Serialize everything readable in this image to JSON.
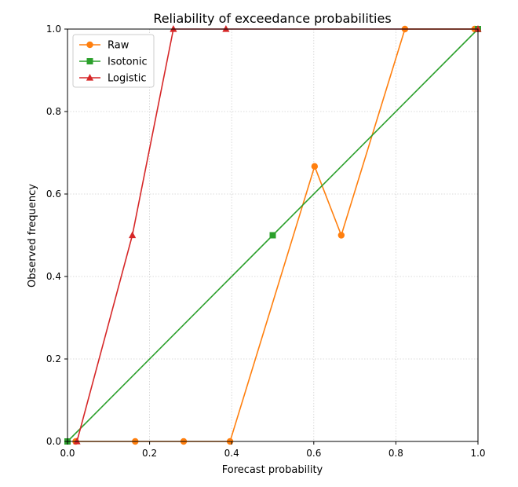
{
  "chart_data": {
    "type": "line",
    "title": "Reliability of exceedance probabilities",
    "xlabel": "Forecast probability",
    "ylabel": "Observed frequency",
    "xlim": [
      0,
      1
    ],
    "ylim": [
      0,
      1
    ],
    "xticks": [
      "0.0",
      "0.2",
      "0.4",
      "0.6",
      "0.8",
      "1.0"
    ],
    "yticks": [
      "0.0",
      "0.2",
      "0.4",
      "0.6",
      "0.8",
      "1.0"
    ],
    "grid": true,
    "legend_position": "top-left",
    "reference_line": {
      "x": [
        0,
        1
      ],
      "y": [
        0,
        1
      ],
      "color": "#808080"
    },
    "series": [
      {
        "name": "Raw",
        "color": "#ff7f0e",
        "marker": "circle",
        "x": [
          0.02,
          0.165,
          0.283,
          0.396,
          0.602,
          0.667,
          0.822,
          0.992
        ],
        "y": [
          0.0,
          0.0,
          0.0,
          0.0,
          0.667,
          0.5,
          1.0,
          1.0
        ]
      },
      {
        "name": "Isotonic",
        "color": "#2ca02c",
        "marker": "square",
        "x": [
          0.0,
          0.5,
          1.0
        ],
        "y": [
          0.0,
          0.5,
          1.0
        ]
      },
      {
        "name": "Logistic",
        "color": "#d62728",
        "marker": "triangle",
        "x": [
          0.023,
          0.158,
          0.258,
          0.386,
          1.0
        ],
        "y": [
          0.0,
          0.5,
          1.0,
          1.0,
          1.0
        ]
      }
    ]
  }
}
